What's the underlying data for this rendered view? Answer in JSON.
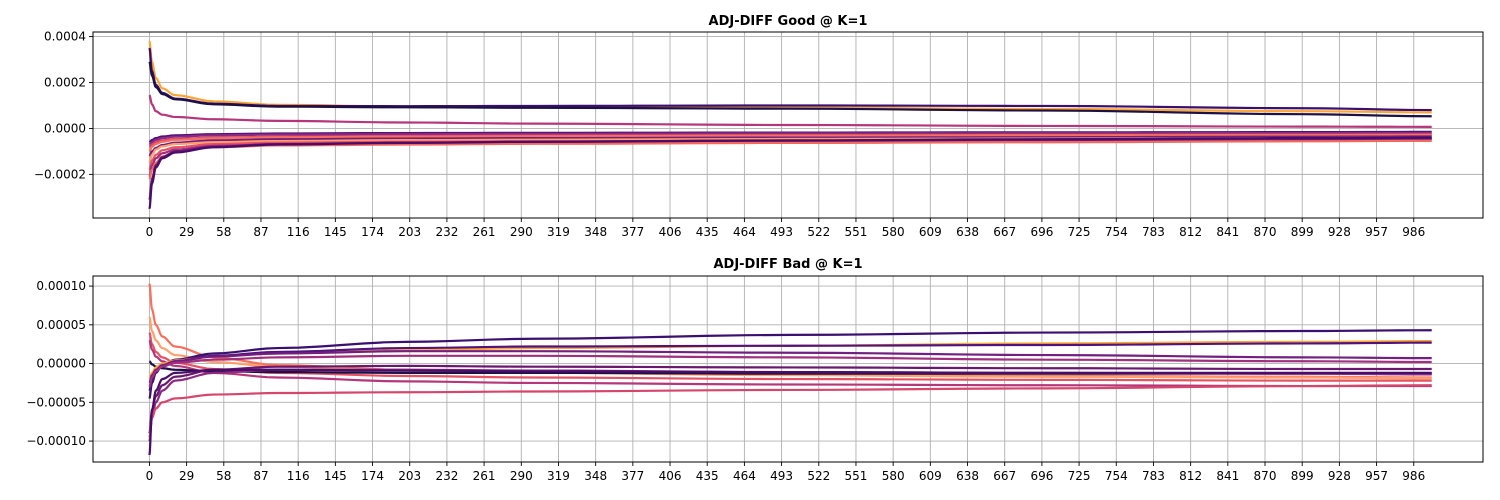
{
  "chart_data": [
    {
      "type": "line",
      "title": "ADJ-DIFF Good @ K=1",
      "xlabel": "",
      "ylabel": "",
      "xlim": [
        -44,
        1040
      ],
      "ylim": [
        -0.00039,
        0.00042
      ],
      "x_ticks": [
        0,
        29,
        58,
        87,
        116,
        145,
        174,
        203,
        232,
        261,
        290,
        319,
        348,
        377,
        406,
        435,
        464,
        493,
        522,
        551,
        580,
        609,
        638,
        667,
        696,
        725,
        754,
        783,
        812,
        841,
        870,
        899,
        928,
        957,
        986
      ],
      "y_ticks": [
        -0.0002,
        0.0,
        0.0002,
        0.0004
      ],
      "y_tick_labels": [
        "−0.0002",
        "0.0000",
        "0.0002",
        "0.0004"
      ],
      "grid": true,
      "legend": "none",
      "colormap": "magma",
      "x_sample": [
        0,
        2,
        5,
        10,
        20,
        50,
        100,
        200,
        300,
        500,
        700,
        900,
        1000
      ],
      "series": [
        {
          "color": "#fca636",
          "values": [
            0.00038,
            0.00029,
            0.00022,
            0.000175,
            0.000145,
            0.000118,
            0.000103,
            9.5e-05,
            9.2e-05,
            9e-05,
            8.5e-05,
            7.5e-05,
            7e-05
          ]
        },
        {
          "color": "#3b0f70",
          "values": [
            0.00035,
            0.00025,
            0.00019,
            0.000155,
            0.00013,
            0.000108,
            9.8e-05,
            9.7e-05,
            9.8e-05,
            0.0001,
            9.8e-05,
            8.8e-05,
            8e-05
          ]
        },
        {
          "color": "#1c1044",
          "values": [
            0.00029,
            0.00023,
            0.00018,
            0.00015,
            0.000127,
            0.000105,
            9.5e-05,
            9.2e-05,
            9e-05,
            8.6e-05,
            7.8e-05,
            6.2e-05,
            5.3e-05
          ]
        },
        {
          "color": "#b5367a",
          "values": [
            0.000145,
            0.000105,
            7.5e-05,
            6e-05,
            5e-05,
            4e-05,
            3.3e-05,
            2.6e-05,
            2.1e-05,
            1.5e-05,
            1.1e-05,
            8e-06,
            7e-06
          ]
        },
        {
          "color": "#51127c",
          "values": [
            -6e-05,
            -5e-05,
            -4.2e-05,
            -3.5e-05,
            -3e-05,
            -2.5e-05,
            -2.2e-05,
            -2e-05,
            -1.9e-05,
            -1.8e-05,
            -1.7e-05,
            -1.6e-05,
            -1.5e-05
          ]
        },
        {
          "color": "#8c2981",
          "values": [
            -7e-05,
            -6e-05,
            -5e-05,
            -4.2e-05,
            -3.6e-05,
            -3e-05,
            -2.7e-05,
            -2.5e-05,
            -2.4e-05,
            -2.2e-05,
            -2.1e-05,
            -2e-05,
            -2e-05
          ]
        },
        {
          "color": "#d6456c",
          "values": [
            -8e-05,
            -7e-05,
            -6e-05,
            -5.2e-05,
            -4.6e-05,
            -4e-05,
            -3.6e-05,
            -3.3e-05,
            -3.1e-05,
            -2.9e-05,
            -2.8e-05,
            -2.7e-05,
            -2.6e-05
          ]
        },
        {
          "color": "#f7705c",
          "values": [
            -0.0001,
            -8e-05,
            -6.8e-05,
            -5.8e-05,
            -5e-05,
            -4.3e-05,
            -3.9e-05,
            -3.6e-05,
            -3.4e-05,
            -3.2e-05,
            -3e-05,
            -2.9e-05,
            -2.8e-05
          ]
        },
        {
          "color": "#721f81",
          "values": [
            -0.00012,
            -0.0001,
            -8.5e-05,
            -7.2e-05,
            -6.2e-05,
            -5.2e-05,
            -4.7e-05,
            -4.4e-05,
            -4.2e-05,
            -4e-05,
            -3.8e-05,
            -3.6e-05,
            -3.5e-05
          ]
        },
        {
          "color": "#fe9f6d",
          "values": [
            -0.00015,
            -0.000115,
            -9.2e-05,
            -7.8e-05,
            -6.8e-05,
            -6e-05,
            -5.5e-05,
            -5.1e-05,
            -4.9e-05,
            -4.6e-05,
            -4.4e-05,
            -4.2e-05,
            -4.1e-05
          ]
        },
        {
          "color": "#e65164",
          "values": [
            -0.00018,
            -0.00014,
            -0.000115,
            -9.5e-05,
            -8.2e-05,
            -6.8e-05,
            -6.2e-05,
            -5.8e-05,
            -5.6e-05,
            -5.3e-05,
            -5e-05,
            -4.7e-05,
            -4.6e-05
          ]
        },
        {
          "color": "#9f2f7f",
          "values": [
            -0.00021,
            -0.00016,
            -0.00013,
            -0.000108,
            -9.2e-05,
            -7.6e-05,
            -6.9e-05,
            -6.5e-05,
            -6.2e-05,
            -5.8e-05,
            -5.5e-05,
            -5.1e-05,
            -4.9e-05
          ]
        },
        {
          "color": "#f4695c",
          "values": [
            -0.00022,
            -0.00018,
            -0.00015,
            -0.000122,
            -0.000102,
            -8.2e-05,
            -7.4e-05,
            -7e-05,
            -6.7e-05,
            -6.3e-05,
            -6e-05,
            -5.6e-05,
            -5.4e-05
          ]
        },
        {
          "color": "#6a176e",
          "values": [
            -0.00031,
            -0.00022,
            -0.00016,
            -0.000125,
            -0.0001,
            -8e-05,
            -6.8e-05,
            -6.2e-05,
            -5.8e-05,
            -5.3e-05,
            -4.9e-05,
            -4.5e-05,
            -4.3e-05
          ]
        },
        {
          "color": "#4a0c6b",
          "values": [
            -0.00035,
            -0.00024,
            -0.00017,
            -0.00013,
            -0.000105,
            -8.2e-05,
            -7e-05,
            -6.3e-05,
            -5.8e-05,
            -5.2e-05,
            -4.7e-05,
            -4.2e-05,
            -4e-05
          ]
        }
      ]
    },
    {
      "type": "line",
      "title": "ADJ-DIFF Bad @ K=1",
      "xlabel": "",
      "ylabel": "",
      "xlim": [
        -44,
        1040
      ],
      "ylim": [
        -0.000127,
        0.000113
      ],
      "x_ticks": [
        0,
        29,
        58,
        87,
        116,
        145,
        174,
        203,
        232,
        261,
        290,
        319,
        348,
        377,
        406,
        435,
        464,
        493,
        522,
        551,
        580,
        609,
        638,
        667,
        696,
        725,
        754,
        783,
        812,
        841,
        870,
        899,
        928,
        957,
        986
      ],
      "y_ticks": [
        -0.0001,
        -5e-05,
        0.0,
        5e-05,
        0.0001
      ],
      "y_tick_labels": [
        "−0.00010",
        "−0.00005",
        "0.00000",
        "0.00005",
        "0.00010"
      ],
      "grid": true,
      "legend": "none",
      "colormap": "magma",
      "x_sample": [
        0,
        2,
        5,
        10,
        20,
        50,
        100,
        200,
        300,
        500,
        700,
        900,
        1000
      ],
      "series": [
        {
          "color": "#f7705c",
          "values": [
            0.000103,
            7e-05,
            5e-05,
            3.5e-05,
            2.2e-05,
            8e-06,
            -2e-06,
            -8e-06,
            -1.1e-05,
            -1.4e-05,
            -1.6e-05,
            -1.7e-05,
            -1.8e-05
          ]
        },
        {
          "color": "#fe9f6d",
          "values": [
            6e-05,
            4.2e-05,
            3e-05,
            2e-05,
            1.1e-05,
            2e-06,
            -4e-06,
            -9e-06,
            -1.2e-05,
            -1.5e-05,
            -1.7e-05,
            -1.8e-05,
            -1.9e-05
          ]
        },
        {
          "color": "#e65164",
          "values": [
            4e-05,
            2.5e-05,
            1.5e-05,
            8e-06,
            1e-06,
            -7e-06,
            -1.2e-05,
            -1.6e-05,
            -1.8e-05,
            -2e-05,
            -2.1e-05,
            -2.2e-05,
            -2.2e-05
          ]
        },
        {
          "color": "#b5367a",
          "values": [
            3e-05,
            1.8e-05,
            9e-06,
            3e-06,
            -3e-06,
            -1.2e-05,
            -1.8e-05,
            -2.3e-05,
            -2.5e-05,
            -2.7e-05,
            -2.8e-05,
            -2.9e-05,
            -2.9e-05
          ]
        },
        {
          "color": "#1c1044",
          "values": [
            3e-06,
            -1e-06,
            -4e-06,
            -6e-06,
            -8e-06,
            -1e-05,
            -1.1e-05,
            -1.2e-05,
            -1.2e-05,
            -1.3e-05,
            -1.3e-05,
            -1.3e-05,
            -1.3e-05
          ]
        },
        {
          "color": "#3b0f70",
          "values": [
            -4.5e-05,
            -2.5e-05,
            -1.2e-05,
            -2e-06,
            5e-06,
            1.3e-05,
            2e-05,
            2.8e-05,
            3.2e-05,
            3.7e-05,
            4e-05,
            4.2e-05,
            4.3e-05
          ]
        },
        {
          "color": "#fca636",
          "values": [
            -2e-05,
            -1.2e-05,
            -5e-06,
            0.0,
            4e-06,
            9e-06,
            1.3e-05,
            1.7e-05,
            2e-05,
            2.3e-05,
            2.6e-05,
            2.8e-05,
            2.9e-05
          ]
        },
        {
          "color": "#51127c",
          "values": [
            -3.5e-05,
            -2e-05,
            -1e-05,
            -3e-06,
            3e-06,
            1e-05,
            1.5e-05,
            2e-05,
            2.2e-05,
            2.3e-05,
            2.4e-05,
            2.6e-05,
            2.7e-05
          ]
        },
        {
          "color": "#721f81",
          "values": [
            -2.5e-05,
            -1.5e-05,
            -8e-06,
            -2e-06,
            3e-06,
            9e-06,
            1.3e-05,
            1.6e-05,
            1.6e-05,
            1.4e-05,
            1.1e-05,
            8e-06,
            7e-06
          ]
        },
        {
          "color": "#9f2f7f",
          "values": [
            -3e-05,
            -1.8e-05,
            -1e-05,
            -4e-06,
            1e-06,
            5e-06,
            8e-06,
            1e-05,
            1e-05,
            8e-06,
            5e-06,
            3e-06,
            2e-06
          ]
        },
        {
          "color": "#6a176e",
          "values": [
            -9e-05,
            -6e-05,
            -4.2e-05,
            -2.8e-05,
            -1.7e-05,
            -8e-06,
            -4e-06,
            -3e-06,
            -4e-06,
            -5e-06,
            -6e-06,
            -7e-06,
            -7e-06
          ]
        },
        {
          "color": "#8c2981",
          "values": [
            -0.0001,
            -7e-05,
            -5e-05,
            -3.5e-05,
            -2.2e-05,
            -1.2e-05,
            -8e-06,
            -8e-06,
            -9e-06,
            -1.1e-05,
            -1.2e-05,
            -1.3e-05,
            -1.4e-05
          ]
        },
        {
          "color": "#d6456c",
          "values": [
            -9.5e-05,
            -7e-05,
            -5.8e-05,
            -5e-05,
            -4.5e-05,
            -4e-05,
            -3.8e-05,
            -3.7e-05,
            -3.6e-05,
            -3.4e-05,
            -3.2e-05,
            -2.9e-05,
            -2.8e-05
          ]
        },
        {
          "color": "#4a0c6b",
          "values": [
            -0.000118,
            -6e-05,
            -3.5e-05,
            -2e-05,
            -1.2e-05,
            -8e-06,
            -8e-06,
            -9e-06,
            -1e-05,
            -1.1e-05,
            -1.2e-05,
            -1.2e-05,
            -1.2e-05
          ]
        }
      ]
    }
  ]
}
